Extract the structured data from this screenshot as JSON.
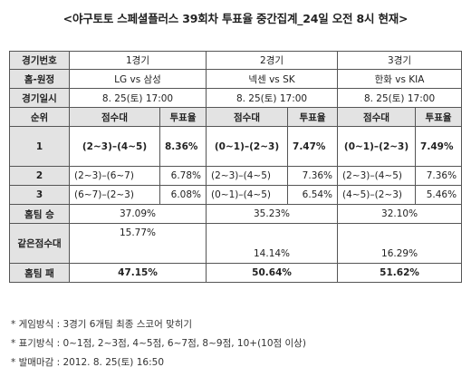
{
  "title": "<야구토토 스페셜플러스 39회차 투표율 중간집계_24일 오전 8시 현재>",
  "labels": {
    "game_no": "경기번호",
    "home_away": "홈-원정",
    "game_date": "경기일시",
    "rank": "순위",
    "score_band": "점수대",
    "vote_rate": "투표율",
    "home_win": "홈팀 승",
    "draw": "같은점수대",
    "home_loss": "홈팀 패"
  },
  "games": [
    {
      "no": "1경기",
      "teams": "LG vs 삼성",
      "date": "8. 25(토) 17:00",
      "ranks": [
        {
          "band": "(2~3)–(4~5)",
          "rate": "8.36%"
        },
        {
          "band": "(2~3)–(6~7)",
          "rate": "6.78%"
        },
        {
          "band": "(6~7)–(2~3)",
          "rate": "6.08%"
        }
      ],
      "home_win": "37.09%",
      "draw": "15.77%",
      "home_loss": "47.15%"
    },
    {
      "no": "2경기",
      "teams": "넥센 vs SK",
      "date": "8. 25(토) 17:00",
      "ranks": [
        {
          "band": "(0~1)–(2~3)",
          "rate": "7.47%"
        },
        {
          "band": "(2~3)–(4~5)",
          "rate": "7.36%"
        },
        {
          "band": "(0~1)–(4~5)",
          "rate": "6.54%"
        }
      ],
      "home_win": "35.23%",
      "draw": "14.14%",
      "home_loss": "50.64%"
    },
    {
      "no": "3경기",
      "teams": "한화 vs KIA",
      "date": "8. 25(토) 17:00",
      "ranks": [
        {
          "band": "(0~1)–(2~3)",
          "rate": "7.49%"
        },
        {
          "band": "(2~3)–(4~5)",
          "rate": "7.36%"
        },
        {
          "band": "(4~5)–(2~3)",
          "rate": "5.46%"
        }
      ],
      "home_win": "32.10%",
      "draw": "16.29%",
      "home_loss": "51.62%"
    }
  ],
  "rank_numbers": [
    "1",
    "2",
    "3"
  ],
  "notes": [
    "* 게임방식 : 3경기 6개팀 최종 스코어 맞히기",
    "* 표기방식 : 0~1점, 2~3점, 4~5점, 6~7점, 8~9점, 10+(10점 이상)",
    "* 발매마감 : 2012. 8. 25(토) 16:50"
  ]
}
